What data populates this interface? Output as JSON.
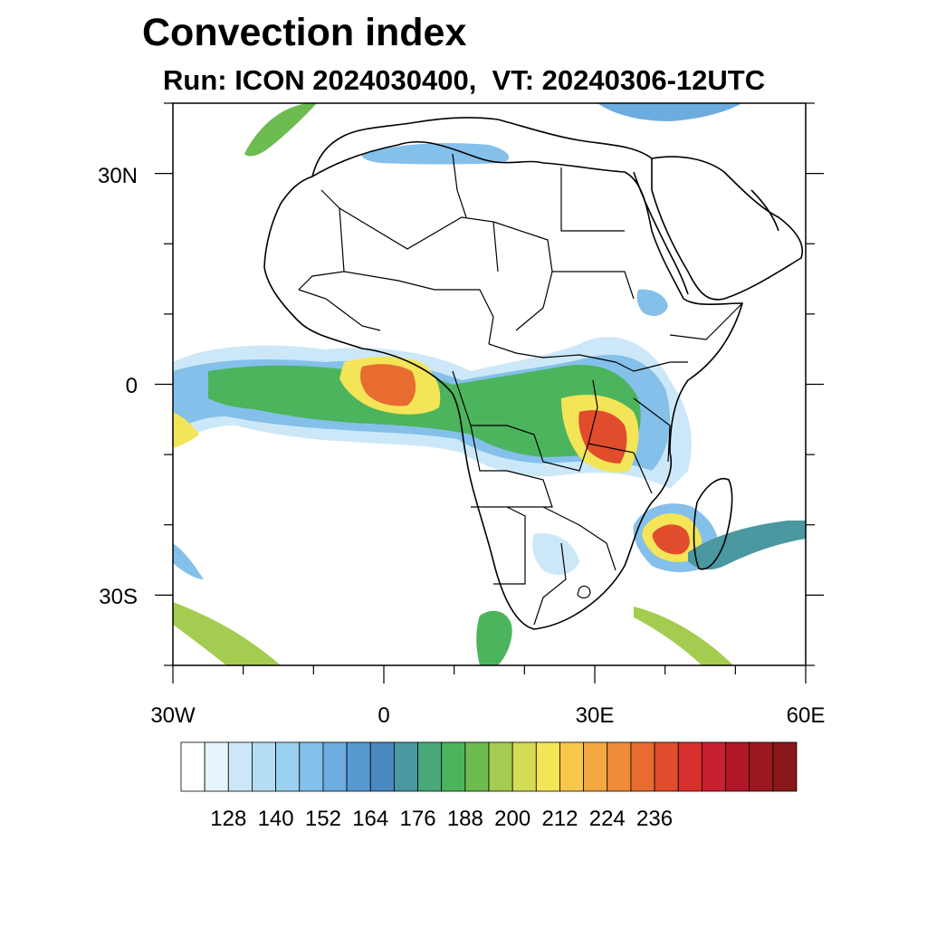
{
  "title": "Convection index",
  "subtitle": "Run: ICON 2024030400,  VT: 20240306-12UTC",
  "map": {
    "lon_range": [
      -30,
      60
    ],
    "lat_range": [
      -40,
      40
    ],
    "lat_labels": [
      "30N",
      "0",
      "30S"
    ],
    "lon_labels": [
      "30W",
      "0",
      "30E",
      "60E"
    ]
  },
  "colorbar": {
    "labels": [
      "128",
      "140",
      "152",
      "164",
      "176",
      "188",
      "200",
      "212",
      "224",
      "236"
    ],
    "colors": [
      "#ffffff",
      "#e8f4fc",
      "#cce8f8",
      "#b4dcf4",
      "#9cd0f0",
      "#84c0ea",
      "#6cacdf",
      "#5698d0",
      "#4a88be",
      "#4a98a0",
      "#48a878",
      "#4cb45c",
      "#6cbc50",
      "#a4cc50",
      "#d4dc54",
      "#f4e458",
      "#f8c84c",
      "#f4a840",
      "#ee8c38",
      "#e86c30",
      "#e04c2c",
      "#d8302c",
      "#c82030",
      "#b01828",
      "#9c1820",
      "#881818"
    ]
  }
}
